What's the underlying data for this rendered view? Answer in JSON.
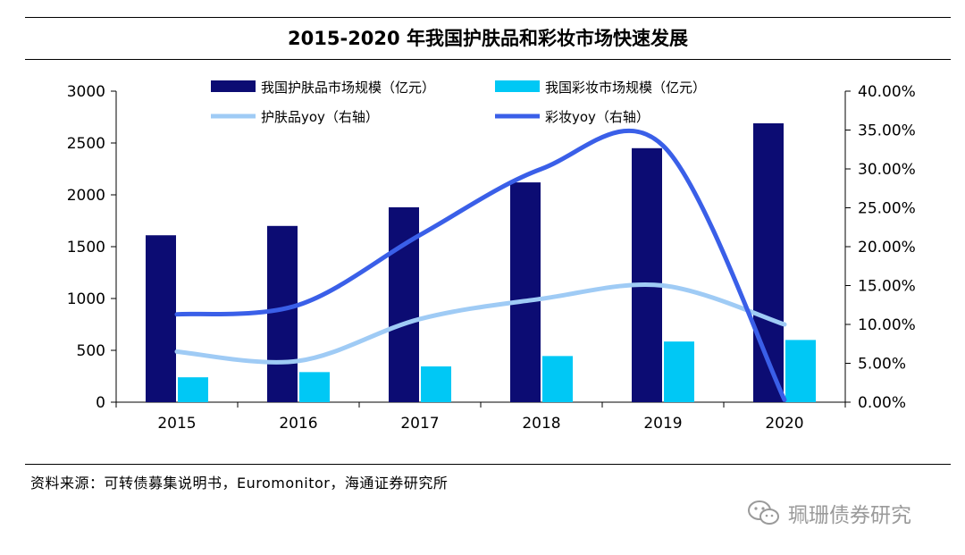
{
  "title": "2015-2020 年我国护肤品和彩妆市场快速发展",
  "source": "资料来源：可转债募集说明书，Euromonitor，海通证券研究所",
  "watermark": "珮珊债券研究",
  "colors": {
    "skincare_bar": "#0c0c73",
    "makeup_bar": "#00c8f5",
    "skincare_yoy": "#9fcbf5",
    "makeup_yoy": "#3a5fe8"
  },
  "chart_data": {
    "type": "bar",
    "categories": [
      "2015",
      "2016",
      "2017",
      "2018",
      "2019",
      "2020"
    ],
    "series": [
      {
        "name": "我国护肤品市场规模（亿元）",
        "kind": "bar",
        "axis": "left",
        "values": [
          1610,
          1700,
          1880,
          2120,
          2450,
          2690
        ]
      },
      {
        "name": "我国彩妆市场规模（亿元）",
        "kind": "bar",
        "axis": "left",
        "values": [
          240,
          290,
          345,
          445,
          585,
          600
        ]
      },
      {
        "name": "护肤品yoy（右轴）",
        "kind": "line",
        "axis": "right",
        "values": [
          6.5,
          5.3,
          10.7,
          13.3,
          15.0,
          10.0
        ]
      },
      {
        "name": "彩妆yoy（右轴）",
        "kind": "line",
        "axis": "right",
        "values": [
          11.3,
          12.5,
          21.5,
          30.0,
          33.0,
          0.3
        ]
      }
    ],
    "y_left": {
      "min": 0,
      "max": 3000,
      "ticks": [
        "0",
        "500",
        "1000",
        "1500",
        "2000",
        "2500",
        "3000"
      ]
    },
    "y_right": {
      "min": 0,
      "max": 40,
      "ticks": [
        "0.00%",
        "5.00%",
        "10.00%",
        "15.00%",
        "20.00%",
        "25.00%",
        "30.00%",
        "35.00%",
        "40.00%"
      ]
    },
    "legend_position": "top",
    "grid": false
  }
}
